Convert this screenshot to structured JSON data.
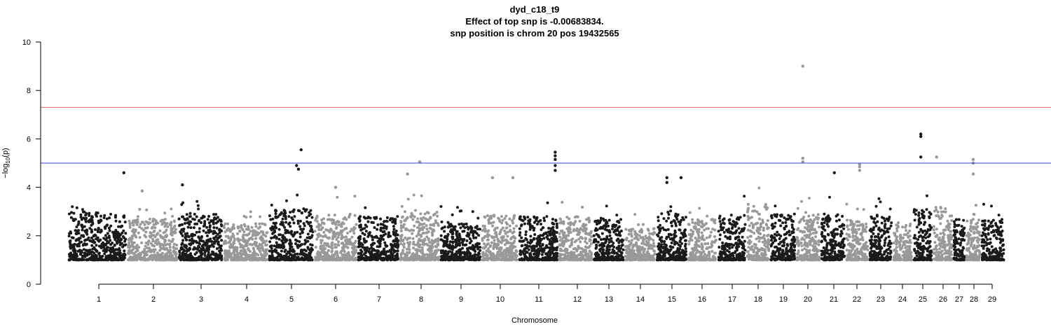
{
  "chart_data": {
    "type": "scatter",
    "subtype": "manhattan",
    "title": "dyd_c18_t9",
    "subtitle_lines": [
      "Effect of top snp is -0.00683834.",
      "snp position is chrom 20 pos 19432565"
    ],
    "xlabel": "Chromosome",
    "ylabel_main": "−log",
    "ylabel_sub": "10",
    "ylabel_paren": "(p)",
    "ylim": [
      0,
      10
    ],
    "y_ticks": [
      "0",
      "2",
      "4",
      "6",
      "8",
      "10"
    ],
    "chromosomes": [
      "1",
      "2",
      "3",
      "4",
      "5",
      "6",
      "7",
      "8",
      "9",
      "10",
      "11",
      "12",
      "13",
      "14",
      "15",
      "16",
      "17",
      "18",
      "19",
      "20",
      "21",
      "22",
      "23",
      "24",
      "25",
      "26",
      "27",
      "28",
      "29"
    ],
    "baseline_min": 1.0,
    "thresholds": [
      {
        "value": 7.3,
        "color": "#e06666"
      },
      {
        "value": 5.0,
        "color": "#3b3bd6"
      }
    ],
    "colors": {
      "odd": "#1a1a1a",
      "even": "#999999"
    },
    "peak_points": [
      {
        "chrom": "1",
        "pos": 0.95,
        "y": 4.6
      },
      {
        "chrom": "2",
        "pos": 0.3,
        "y": 3.85
      },
      {
        "chrom": "3",
        "pos": 0.1,
        "y": 4.1
      },
      {
        "chrom": "5",
        "pos": 0.72,
        "y": 5.55
      },
      {
        "chrom": "5",
        "pos": 0.62,
        "y": 4.9
      },
      {
        "chrom": "5",
        "pos": 0.66,
        "y": 4.75
      },
      {
        "chrom": "6",
        "pos": 0.5,
        "y": 4.0
      },
      {
        "chrom": "8",
        "pos": 0.5,
        "y": 5.05
      },
      {
        "chrom": "8",
        "pos": 0.2,
        "y": 4.55
      },
      {
        "chrom": "10",
        "pos": 0.3,
        "y": 4.4
      },
      {
        "chrom": "10",
        "pos": 0.85,
        "y": 4.4
      },
      {
        "chrom": "11",
        "pos": 0.92,
        "y": 5.45
      },
      {
        "chrom": "11",
        "pos": 0.92,
        "y": 5.3
      },
      {
        "chrom": "11",
        "pos": 0.92,
        "y": 5.15
      },
      {
        "chrom": "11",
        "pos": 0.92,
        "y": 4.9
      },
      {
        "chrom": "11",
        "pos": 0.92,
        "y": 4.7
      },
      {
        "chrom": "15",
        "pos": 0.35,
        "y": 4.4
      },
      {
        "chrom": "15",
        "pos": 0.35,
        "y": 4.2
      },
      {
        "chrom": "15",
        "pos": 0.8,
        "y": 4.4
      },
      {
        "chrom": "20",
        "pos": 0.28,
        "y": 9.0
      },
      {
        "chrom": "20",
        "pos": 0.28,
        "y": 5.2
      },
      {
        "chrom": "20",
        "pos": 0.28,
        "y": 5.05
      },
      {
        "chrom": "21",
        "pos": 0.55,
        "y": 4.6
      },
      {
        "chrom": "22",
        "pos": 0.6,
        "y": 4.95
      },
      {
        "chrom": "22",
        "pos": 0.6,
        "y": 4.85
      },
      {
        "chrom": "22",
        "pos": 0.6,
        "y": 4.7
      },
      {
        "chrom": "25",
        "pos": 0.4,
        "y": 6.2
      },
      {
        "chrom": "25",
        "pos": 0.4,
        "y": 6.1
      },
      {
        "chrom": "25",
        "pos": 0.4,
        "y": 5.25
      },
      {
        "chrom": "26",
        "pos": 0.2,
        "y": 5.25
      },
      {
        "chrom": "28",
        "pos": 0.5,
        "y": 5.15
      },
      {
        "chrom": "28",
        "pos": 0.5,
        "y": 5.0
      },
      {
        "chrom": "28",
        "pos": 0.5,
        "y": 4.55
      }
    ]
  }
}
